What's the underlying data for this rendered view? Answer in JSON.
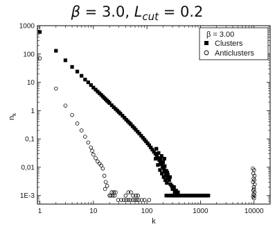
{
  "chart_data": {
    "type": "scatter",
    "title_parts": {
      "beta_symbol": "β",
      "beta_value": " = 3.0, ",
      "L_symbol": "L",
      "L_sub": "cut",
      "L_value": " = 0.2"
    },
    "xlabel": "k",
    "ylabel_main": "n",
    "ylabel_sub": "k",
    "xscale": "log",
    "yscale": "log",
    "xlim": [
      0.9,
      20000
    ],
    "ylim": [
      0.0005,
      1000
    ],
    "xticks": [
      {
        "value": 1,
        "label": "1"
      },
      {
        "value": 10,
        "label": "10"
      },
      {
        "value": 100,
        "label": "100"
      },
      {
        "value": 1000,
        "label": "1000"
      },
      {
        "value": 10000,
        "label": "10000"
      }
    ],
    "yticks": [
      {
        "value": 1000,
        "label": "1000"
      },
      {
        "value": 100,
        "label": "100"
      },
      {
        "value": 10,
        "label": "10"
      },
      {
        "value": 1,
        "label": "1"
      },
      {
        "value": 0.1,
        "label": "0,1"
      },
      {
        "value": 0.01,
        "label": "0,01"
      },
      {
        "value": 0.001,
        "label": "1E-3"
      }
    ],
    "legend": {
      "position": "top-right",
      "header": "β = 3.00",
      "entries": [
        {
          "label": "Clusters",
          "marker": "filled-square"
        },
        {
          "label": "Anticlusters",
          "marker": "open-circle"
        }
      ]
    },
    "series": [
      {
        "name": "Clusters",
        "marker": "filled-square",
        "points": [
          [
            1,
            600
          ],
          [
            2,
            130
          ],
          [
            3,
            60
          ],
          [
            4,
            35
          ],
          [
            5,
            24
          ],
          [
            6,
            17
          ],
          [
            7,
            12.5
          ],
          [
            8,
            10
          ],
          [
            9,
            8
          ],
          [
            10,
            6.5
          ],
          [
            11,
            5.5
          ],
          [
            12,
            4.7
          ],
          [
            13,
            4.1
          ],
          [
            14,
            3.6
          ],
          [
            15,
            3.15
          ],
          [
            16,
            2.8
          ],
          [
            17,
            2.5
          ],
          [
            18,
            2.25
          ],
          [
            19,
            2.05
          ],
          [
            20,
            1.85
          ],
          [
            22,
            1.55
          ],
          [
            24,
            1.32
          ],
          [
            26,
            1.14
          ],
          [
            28,
            1.0
          ],
          [
            30,
            0.88
          ],
          [
            32,
            0.78
          ],
          [
            35,
            0.66
          ],
          [
            38,
            0.56
          ],
          [
            41,
            0.48
          ],
          [
            44,
            0.42
          ],
          [
            47,
            0.37
          ],
          [
            50,
            0.33
          ],
          [
            54,
            0.28
          ],
          [
            58,
            0.245
          ],
          [
            62,
            0.21
          ],
          [
            67,
            0.18
          ],
          [
            72,
            0.155
          ],
          [
            78,
            0.13
          ],
          [
            84,
            0.11
          ],
          [
            90,
            0.095
          ],
          [
            96,
            0.082
          ],
          [
            103,
            0.07
          ],
          [
            110,
            0.06
          ],
          [
            118,
            0.05
          ],
          [
            126,
            0.042
          ],
          [
            135,
            0.035
          ],
          [
            144,
            0.03
          ],
          [
            153,
            0.025
          ],
          [
            162,
            0.021
          ],
          [
            170,
            0.018
          ],
          [
            178,
            0.015
          ],
          [
            186,
            0.013
          ],
          [
            194,
            0.011
          ],
          [
            202,
            0.0095
          ],
          [
            210,
            0.008
          ],
          [
            218,
            0.007
          ],
          [
            226,
            0.006
          ],
          [
            234,
            0.0052
          ],
          [
            242,
            0.0045
          ],
          [
            250,
            0.004
          ],
          [
            145,
            0.02
          ],
          [
            160,
            0.012
          ],
          [
            175,
            0.008
          ],
          [
            190,
            0.006
          ],
          [
            205,
            0.0045
          ],
          [
            220,
            0.0035
          ],
          [
            235,
            0.0028
          ],
          [
            180,
            0.02
          ],
          [
            200,
            0.015
          ],
          [
            215,
            0.011
          ],
          [
            230,
            0.0075
          ],
          [
            245,
            0.0055
          ],
          [
            260,
            0.0035
          ],
          [
            275,
            0.0025
          ],
          [
            300,
            0.0017
          ],
          [
            330,
            0.0013
          ],
          [
            360,
            0.0011
          ],
          [
            150,
            0.045
          ],
          [
            165,
            0.032
          ],
          [
            188,
            0.025
          ],
          [
            212,
            0.02
          ],
          [
            240,
            0.0065
          ],
          [
            270,
            0.0045
          ],
          [
            290,
            0.0022
          ],
          [
            320,
            0.002
          ],
          [
            350,
            0.0015
          ],
          [
            380,
            0.0013
          ],
          [
            230,
            0.001
          ],
          [
            250,
            0.001
          ],
          [
            270,
            0.001
          ],
          [
            290,
            0.001
          ],
          [
            310,
            0.001
          ],
          [
            330,
            0.001
          ],
          [
            350,
            0.001
          ],
          [
            370,
            0.001
          ],
          [
            390,
            0.001
          ],
          [
            410,
            0.001
          ],
          [
            430,
            0.001
          ],
          [
            450,
            0.001
          ],
          [
            480,
            0.001
          ],
          [
            510,
            0.001
          ],
          [
            540,
            0.001
          ],
          [
            570,
            0.001
          ],
          [
            600,
            0.001
          ],
          [
            640,
            0.001
          ],
          [
            680,
            0.001
          ],
          [
            720,
            0.001
          ],
          [
            770,
            0.001
          ],
          [
            820,
            0.001
          ],
          [
            870,
            0.001
          ],
          [
            920,
            0.001
          ],
          [
            980,
            0.001
          ],
          [
            1040,
            0.001
          ],
          [
            1100,
            0.001
          ],
          [
            1170,
            0.001
          ],
          [
            1240,
            0.001
          ],
          [
            1320,
            0.001
          ],
          [
            1400,
            0.001
          ]
        ]
      },
      {
        "name": "Anticlusters",
        "marker": "open-circle",
        "points": [
          [
            1,
            70
          ],
          [
            2,
            6.0
          ],
          [
            3,
            1.5
          ],
          [
            4,
            0.7
          ],
          [
            5,
            0.35
          ],
          [
            6,
            0.2
          ],
          [
            7,
            0.12
          ],
          [
            8,
            0.075
          ],
          [
            9,
            0.05
          ],
          [
            9.5,
            0.038
          ],
          [
            10,
            0.028
          ],
          [
            11,
            0.021
          ],
          [
            12,
            0.016
          ],
          [
            13,
            0.0135
          ],
          [
            14,
            0.0115
          ],
          [
            15,
            0.009
          ],
          [
            16,
            0.005
          ],
          [
            17,
            0.003
          ],
          [
            18,
            0.0022
          ],
          [
            16.5,
            0.0017
          ],
          [
            22,
            0.0013
          ],
          [
            24,
            0.0013
          ],
          [
            26,
            0.0013
          ],
          [
            20,
            0.001
          ],
          [
            21,
            0.001
          ],
          [
            23,
            0.001
          ],
          [
            25,
            0.001
          ],
          [
            29,
            0.0007
          ],
          [
            33,
            0.0007
          ],
          [
            37,
            0.0007
          ],
          [
            41,
            0.0007
          ],
          [
            45,
            0.0007
          ],
          [
            49,
            0.0007
          ],
          [
            55,
            0.0007
          ],
          [
            60,
            0.0007
          ],
          [
            65,
            0.0007
          ],
          [
            70,
            0.0007
          ],
          [
            80,
            0.0007
          ],
          [
            90,
            0.0007
          ],
          [
            110,
            0.0007
          ],
          [
            40,
            0.001
          ],
          [
            45,
            0.0013
          ],
          [
            50,
            0.0013
          ],
          [
            55,
            0.001
          ],
          [
            62,
            0.001
          ],
          [
            68,
            0.001
          ],
          [
            9500,
            0.009
          ],
          [
            10000,
            0.008
          ],
          [
            9700,
            0.006
          ],
          [
            10200,
            0.005
          ],
          [
            9800,
            0.004
          ],
          [
            10100,
            0.0035
          ],
          [
            9600,
            0.003
          ],
          [
            10300,
            0.0025
          ],
          [
            9900,
            0.002
          ],
          [
            10000,
            0.0017
          ],
          [
            9700,
            0.0015
          ],
          [
            10200,
            0.0013
          ],
          [
            9800,
            0.0011
          ],
          [
            10100,
            0.001
          ],
          [
            9600,
            0.0009
          ],
          [
            10000,
            0.0008
          ]
        ]
      }
    ]
  }
}
